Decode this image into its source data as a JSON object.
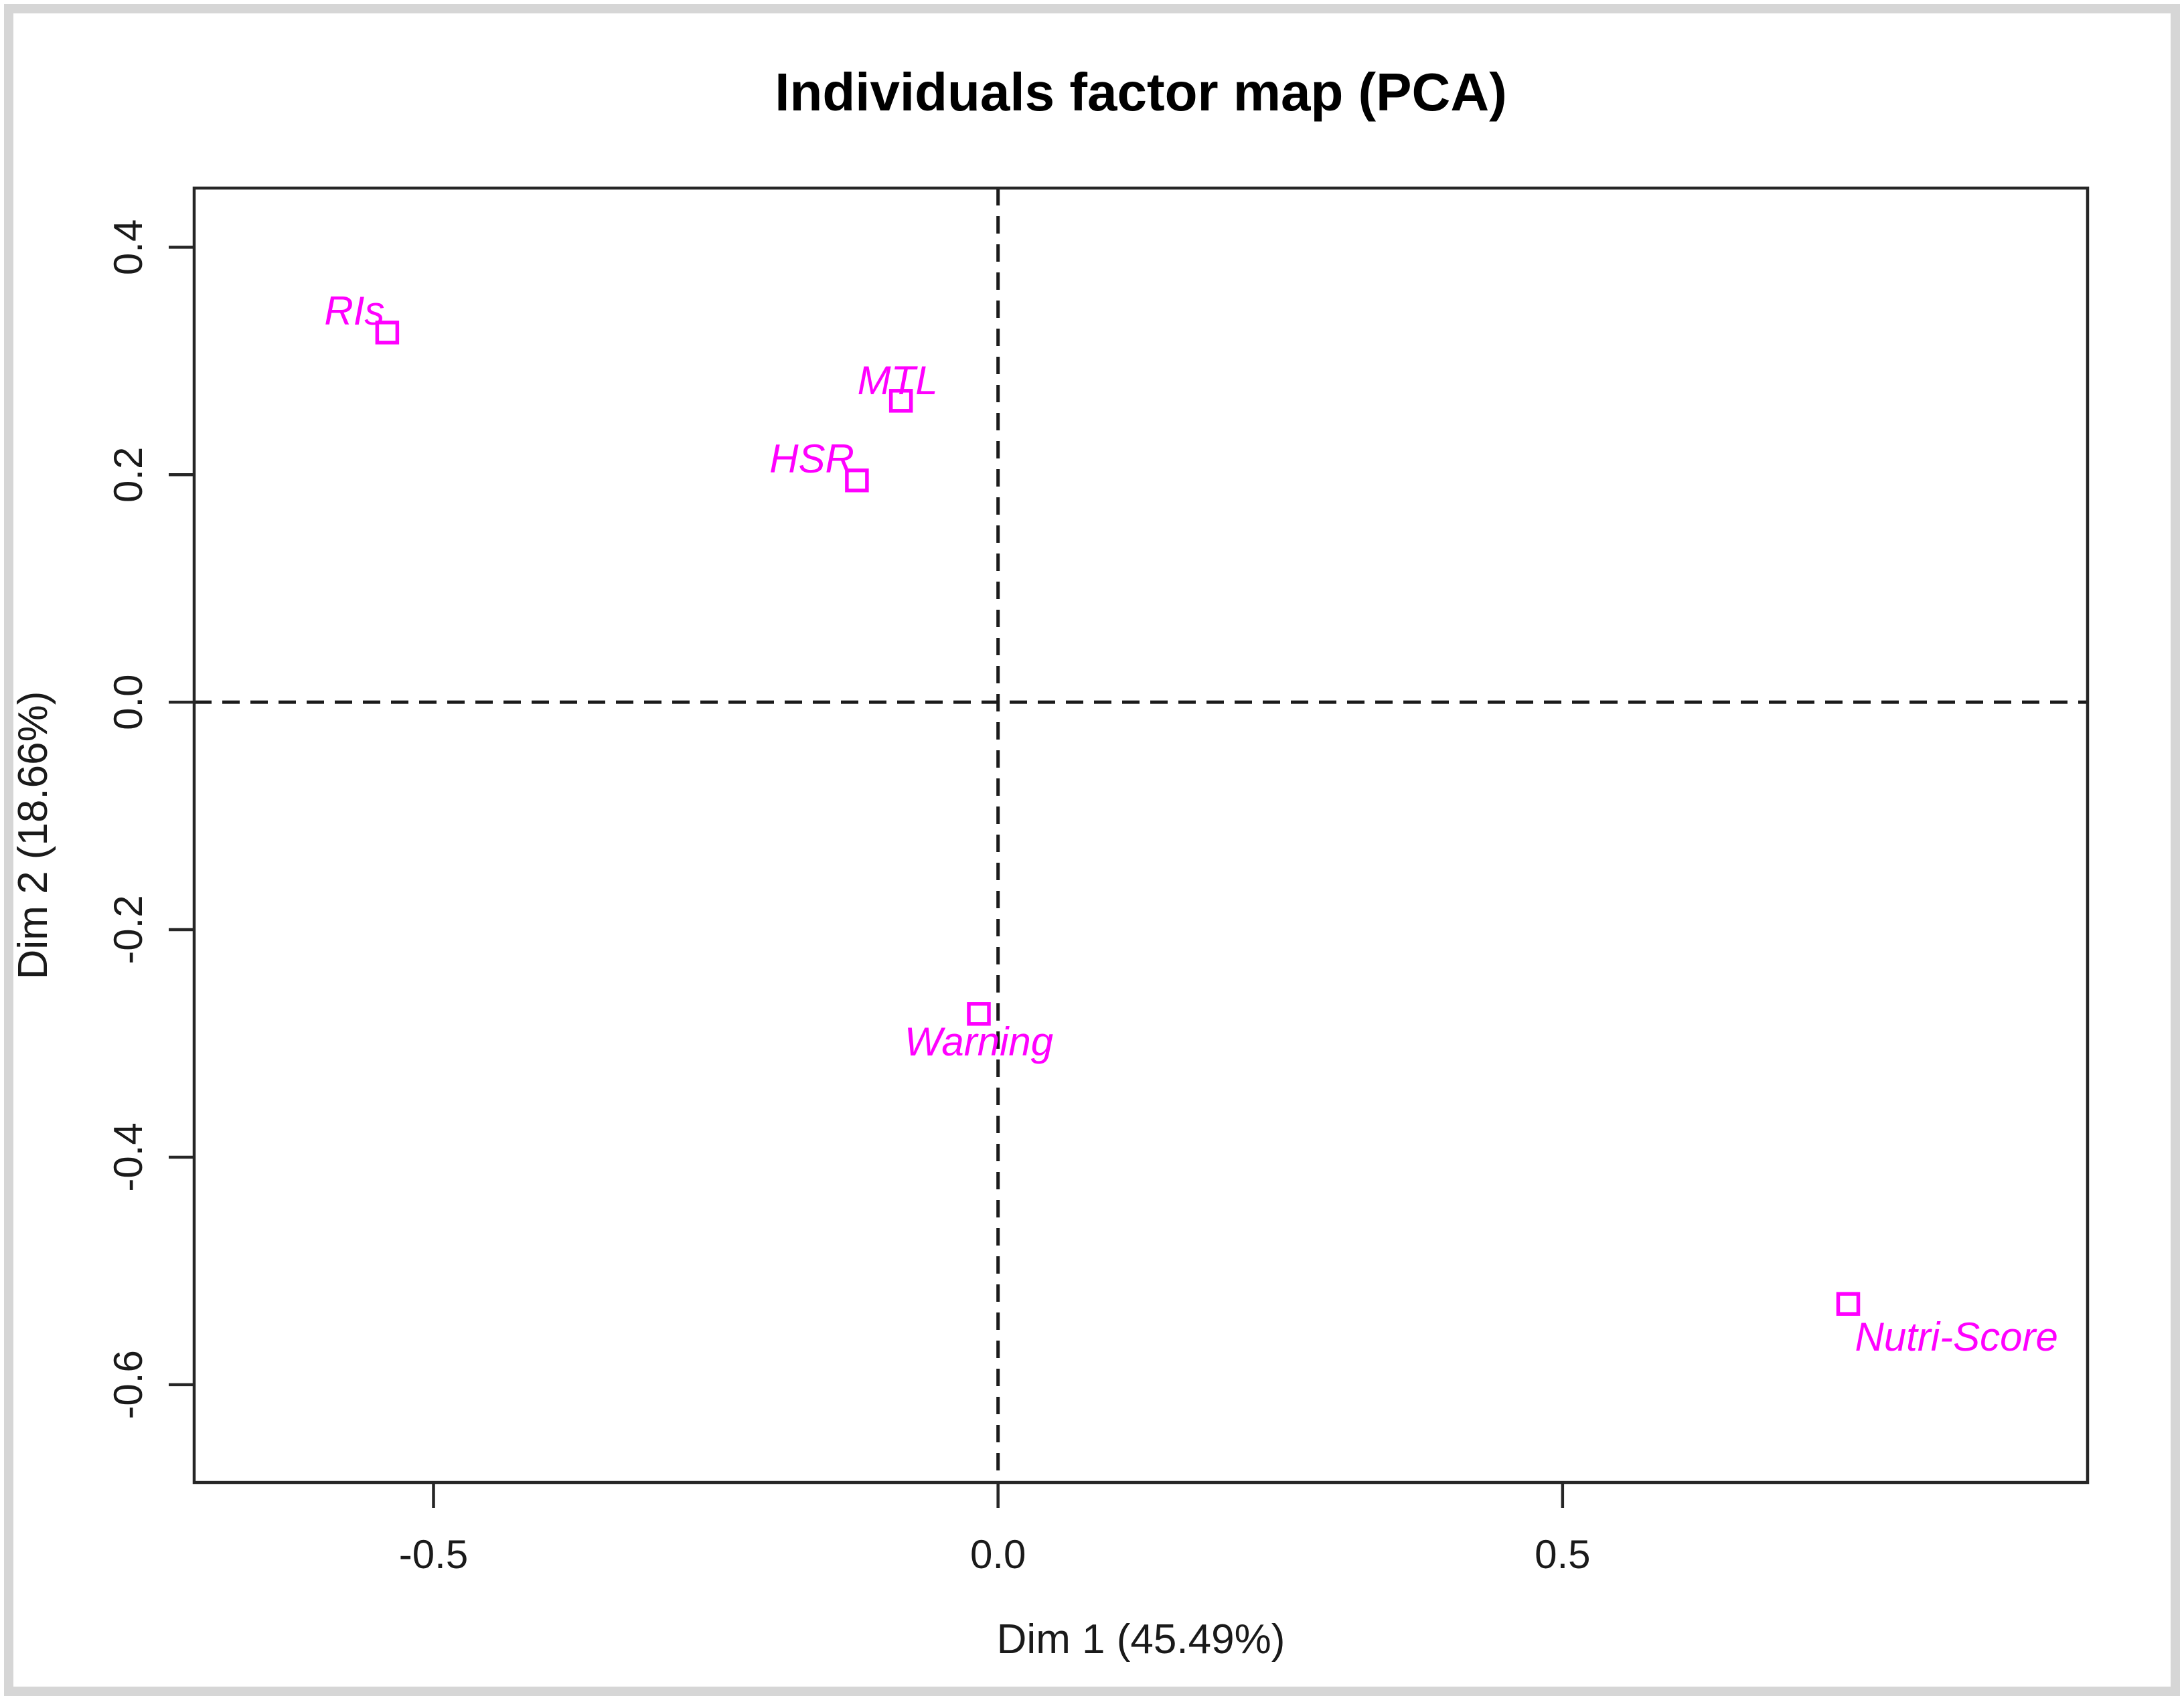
{
  "chart_data": {
    "type": "scatter",
    "title": "Individuals factor map (PCA)",
    "xlabel": "Dim 1 (45.49%)",
    "ylabel": "Dim 2 (18.66%)",
    "xlim": [
      -0.712,
      0.965
    ],
    "ylim": [
      -0.686,
      0.452
    ],
    "xticks": [
      -0.5,
      0.0,
      0.5
    ],
    "yticks": [
      0.4,
      0.2,
      0.0,
      -0.2,
      -0.4,
      -0.6
    ],
    "grid": false,
    "legend": false,
    "reference_lines": {
      "vertical_at_x": 0.0,
      "horizontal_at_y": 0.0,
      "style": "dashed"
    },
    "marker": {
      "shape": "open-square",
      "size": 30,
      "color": "#ff00ff"
    },
    "label_color": "#ff00ff",
    "axis_color": "#262626",
    "background_color": "#ffffff",
    "frame_color": "#d6d6d6",
    "points": [
      {
        "id": "ris",
        "label": "RIs",
        "x": -0.541,
        "y": 0.325,
        "label_pos": "above-left"
      },
      {
        "id": "mtl",
        "label": "MTL",
        "x": -0.086,
        "y": 0.265,
        "label_pos": "above"
      },
      {
        "id": "hsr",
        "label": "HSR",
        "x": -0.125,
        "y": 0.195,
        "label_pos": "above-left"
      },
      {
        "id": "warning",
        "label": "Warning",
        "x": -0.017,
        "y": -0.274,
        "label_pos": "below"
      },
      {
        "id": "nutri-score",
        "label": "Nutri-Score",
        "x": 0.753,
        "y": -0.529,
        "label_pos": "below-right"
      }
    ]
  }
}
